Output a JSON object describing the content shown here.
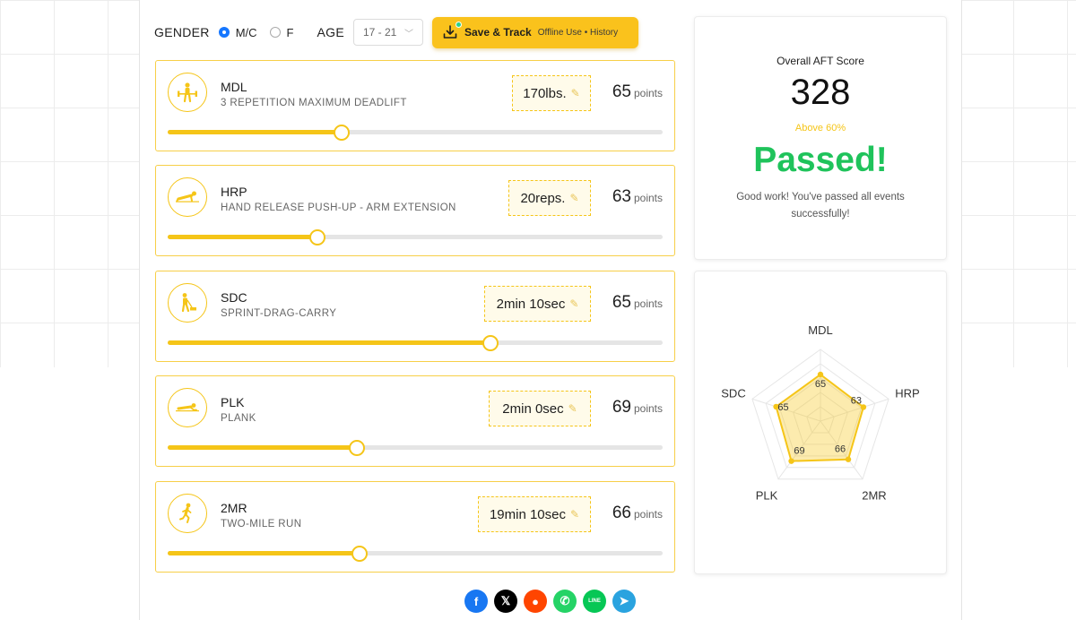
{
  "toolbar": {
    "gender_label": "GENDER",
    "gender_options": [
      {
        "label": "M/C",
        "selected": true
      },
      {
        "label": "F",
        "selected": false
      }
    ],
    "age_label": "AGE",
    "age_value": "17 - 21",
    "save_label": "Save & Track",
    "save_sub": "Offline Use • History"
  },
  "events": [
    {
      "code": "MDL",
      "name": "3 REPETITION MAXIMUM DEADLIFT",
      "value": "170lbs.",
      "points": "65",
      "points_word": "points",
      "progress": 0.35,
      "icon": "deadlift-icon"
    },
    {
      "code": "HRP",
      "name": "HAND RELEASE PUSH-UP - ARM EXTENSION",
      "value": "20reps.",
      "points": "63",
      "points_word": "points",
      "progress": 0.3,
      "icon": "pushup-icon"
    },
    {
      "code": "SDC",
      "name": "SPRINT-DRAG-CARRY",
      "value": "2min 10sec",
      "points": "65",
      "points_word": "points",
      "progress": 0.65,
      "icon": "sprint-drag-carry-icon"
    },
    {
      "code": "PLK",
      "name": "PLANK",
      "value": "2min 0sec",
      "points": "69",
      "points_word": "points",
      "progress": 0.38,
      "icon": "plank-icon"
    },
    {
      "code": "2MR",
      "name": "TWO-MILE RUN",
      "value": "19min 10sec",
      "points": "66",
      "points_word": "points",
      "progress": 0.385,
      "icon": "runner-icon"
    }
  ],
  "score": {
    "title": "Overall AFT Score",
    "value": "328",
    "above": "Above 60%",
    "status": "Passed!",
    "message": "Good work! You've passed all events successfully!"
  },
  "radar": {
    "axes": [
      "MDL",
      "HRP",
      "2MR",
      "PLK",
      "SDC"
    ],
    "values": [
      65,
      63,
      66,
      69,
      65
    ],
    "max": 100
  },
  "share": [
    {
      "name": "facebook",
      "glyph": "f",
      "color": "#1877f2"
    },
    {
      "name": "x",
      "glyph": "𝕏",
      "color": "#000000"
    },
    {
      "name": "reddit",
      "glyph": "●",
      "color": "#ff4500"
    },
    {
      "name": "whatsapp",
      "glyph": "✆",
      "color": "#25d366"
    },
    {
      "name": "line",
      "glyph": "LINE",
      "color": "#06c755"
    },
    {
      "name": "telegram",
      "glyph": "➤",
      "color": "#2aa3df"
    }
  ],
  "colors": {
    "accent": "#f5c518",
    "pass": "#1fc35b",
    "radio": "#1677ff"
  }
}
